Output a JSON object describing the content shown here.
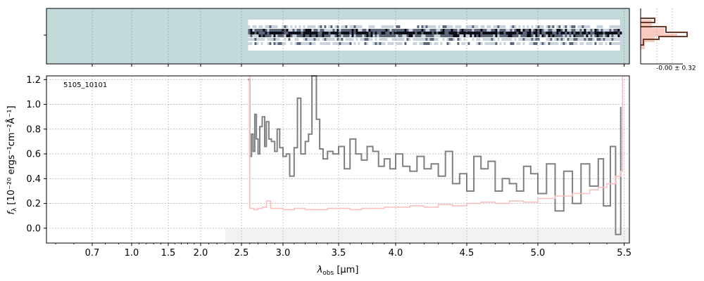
{
  "chart_data": [
    {
      "type": "heatmap",
      "panel": "2D spectrum",
      "background_color": "#c3d9d9",
      "trace_colormap": [
        "#ffffff",
        "#c8d2dc",
        "#5a6478",
        "#0a0a14"
      ],
      "trace_x_range_um": [
        2.58,
        5.5
      ]
    },
    {
      "type": "histogram",
      "panel": "pixel distribution",
      "annotation": "-0.00 ± 0.32",
      "colors": {
        "data": "#6b3a2a",
        "model": "#f4a896"
      }
    },
    {
      "type": "line",
      "panel": "1D spectrum",
      "label": "5105_10101",
      "xlabel_main": "λ",
      "xlabel_sub": "obs",
      "xlabel_unit": " [μm]",
      "ylabel_main": "f",
      "ylabel_sub": "λ",
      "ylabel_unit": " [10⁻²⁰ ergs⁻¹cm⁻²Å⁻¹]",
      "x_scale": "nonlinear (compressed below 2.5 μm)",
      "xlim": [
        0.45,
        5.53
      ],
      "ylim": [
        -0.12,
        1.23
      ],
      "x_ticks": [
        "0.7",
        "1.0",
        "1.5",
        "2.0",
        "2.5",
        "3.0",
        "3.5",
        "4.0",
        "4.5",
        "5.0",
        "5.5"
      ],
      "y_ticks": [
        "0.0",
        "0.2",
        "0.4",
        "0.6",
        "0.8",
        "1.0",
        "1.2"
      ],
      "grid": true,
      "colors": {
        "flux": "#808080",
        "error": "#f8c0c0",
        "shade": "#f2f2f2"
      },
      "shade_x_range": [
        2.3,
        5.53
      ],
      "series": [
        {
          "role": "flux",
          "x": [
            2.58,
            2.6,
            2.62,
            2.64,
            2.66,
            2.68,
            2.7,
            2.72,
            2.75,
            2.78,
            2.8,
            2.83,
            2.86,
            2.9,
            2.93,
            2.96,
            3.0,
            3.03,
            3.06,
            3.1,
            3.13,
            3.16,
            3.2,
            3.23,
            3.26,
            3.3,
            3.33,
            3.36,
            3.4,
            3.45,
            3.5,
            3.55,
            3.6,
            3.65,
            3.7,
            3.75,
            3.8,
            3.85,
            3.9,
            3.95,
            4.0,
            4.05,
            4.1,
            4.15,
            4.2,
            4.25,
            4.3,
            4.35,
            4.4,
            4.45,
            4.5,
            4.55,
            4.6,
            4.65,
            4.7,
            4.75,
            4.8,
            4.85,
            4.9,
            4.95,
            5.0,
            5.05,
            5.1,
            5.15,
            5.2,
            5.25,
            5.3,
            5.35,
            5.38,
            5.42,
            5.45,
            5.48
          ],
          "y": [
            1.2,
            0.58,
            0.76,
            0.62,
            0.92,
            0.72,
            0.6,
            0.82,
            0.9,
            0.66,
            0.86,
            0.72,
            0.7,
            0.62,
            0.8,
            0.65,
            0.58,
            0.6,
            0.42,
            0.65,
            1.05,
            0.6,
            0.7,
            0.76,
            1.23,
            0.88,
            0.64,
            0.56,
            0.62,
            0.6,
            0.66,
            0.48,
            0.72,
            0.6,
            0.55,
            0.66,
            0.62,
            0.5,
            0.56,
            0.48,
            0.6,
            0.5,
            0.46,
            0.58,
            0.48,
            0.52,
            0.42,
            0.62,
            0.36,
            0.44,
            0.3,
            0.58,
            0.48,
            0.54,
            0.3,
            0.4,
            0.36,
            0.3,
            0.5,
            0.44,
            0.28,
            0.52,
            0.14,
            0.46,
            0.2,
            0.52,
            0.34,
            0.56,
            0.18,
            0.66,
            -0.05,
            0.98
          ]
        },
        {
          "role": "error",
          "x": [
            2.58,
            2.6,
            2.65,
            2.7,
            2.75,
            2.8,
            2.85,
            2.9,
            3.0,
            3.1,
            3.2,
            3.3,
            3.4,
            3.5,
            3.6,
            3.7,
            3.8,
            3.9,
            4.0,
            4.1,
            4.2,
            4.3,
            4.4,
            4.5,
            4.6,
            4.7,
            4.8,
            4.9,
            5.0,
            5.1,
            5.2,
            5.3,
            5.35,
            5.4,
            5.45,
            5.48,
            5.49
          ],
          "y": [
            1.23,
            0.16,
            0.15,
            0.16,
            0.17,
            0.22,
            0.16,
            0.16,
            0.15,
            0.16,
            0.15,
            0.15,
            0.16,
            0.16,
            0.15,
            0.16,
            0.16,
            0.17,
            0.17,
            0.18,
            0.17,
            0.19,
            0.18,
            0.2,
            0.21,
            0.2,
            0.22,
            0.21,
            0.24,
            0.26,
            0.28,
            0.31,
            0.33,
            0.36,
            0.42,
            0.46,
            1.23
          ]
        }
      ]
    }
  ]
}
